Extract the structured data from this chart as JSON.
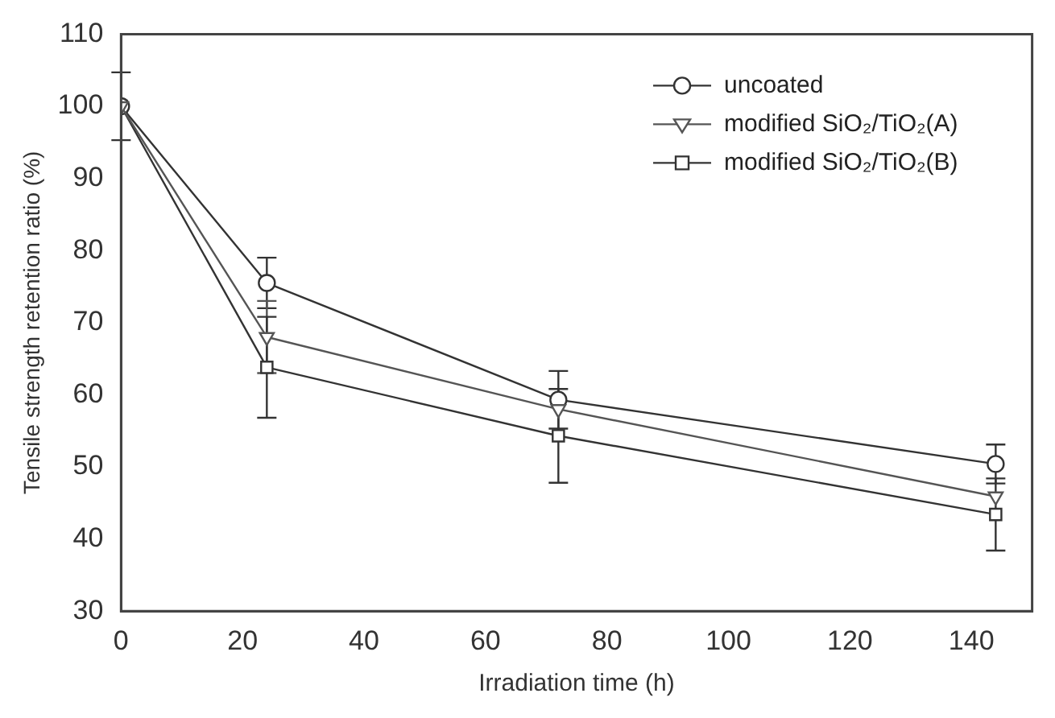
{
  "chart_data": {
    "type": "line",
    "xlabel": "Irradiation time (h)",
    "ylabel": "Tensile strength retention ratio (%)",
    "x": [
      0,
      24,
      72,
      144
    ],
    "series": [
      {
        "name": "uncoated",
        "color": "#333333",
        "marker": "circle",
        "values": [
          100,
          75.5,
          59.3,
          50.4
        ],
        "errors": [
          4.7,
          3.5,
          4,
          2.7
        ]
      },
      {
        "name": "modified SiO₂/TiO₂(A)",
        "color": "#555555",
        "marker": "triangle",
        "values": [
          100,
          68,
          58,
          45.9
        ],
        "errors": [
          null,
          5,
          null,
          null
        ]
      },
      {
        "name": "modified SiO₂/TiO₂(B)",
        "color": "#333333",
        "marker": "square",
        "values": [
          100,
          63.8,
          54.3,
          43.4
        ],
        "errors": [
          null,
          7,
          6.5,
          5
        ]
      }
    ],
    "xlim": [
      0,
      150
    ],
    "xticks": [
      0,
      20,
      40,
      60,
      80,
      100,
      120,
      140
    ],
    "ylim": [
      30,
      110
    ],
    "yticks": [
      30,
      40,
      50,
      60,
      70,
      80,
      90,
      100,
      110
    ],
    "grid": false,
    "legend": "top right"
  }
}
